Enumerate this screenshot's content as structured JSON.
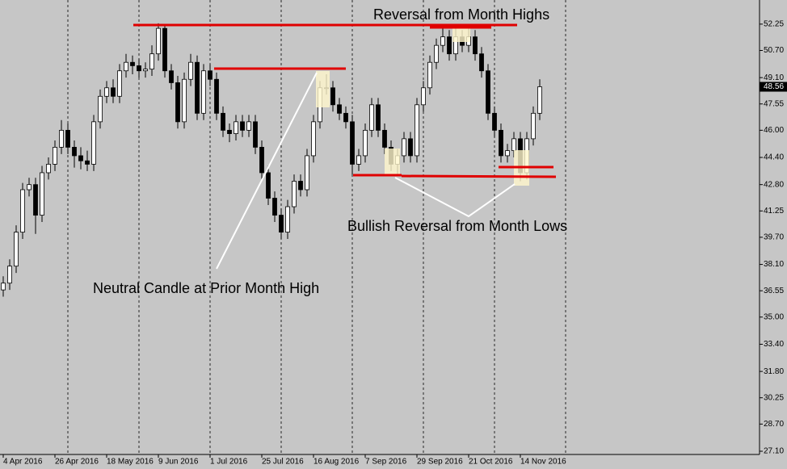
{
  "chart_data": {
    "type": "candlestick",
    "annotations": [
      "Reversal from Month Highs",
      "Neutral Candle at Prior Month High",
      "Bullish Reversal from Month Lows"
    ],
    "current_price": 48.56,
    "categories": [
      "4 Apr 2016",
      null,
      null,
      null,
      null,
      null,
      null,
      null,
      "26 Apr 2016",
      null,
      null,
      null,
      null,
      null,
      null,
      null,
      "18 May 2016",
      null,
      null,
      null,
      null,
      null,
      null,
      null,
      "9 Jun 2016",
      null,
      null,
      null,
      null,
      null,
      null,
      null,
      "1 Jul 2016",
      null,
      null,
      null,
      null,
      null,
      null,
      null,
      "25 Jul 2016",
      null,
      null,
      null,
      null,
      null,
      null,
      null,
      "16 Aug 2016",
      null,
      null,
      null,
      null,
      null,
      null,
      null,
      "7 Sep 2016",
      null,
      null,
      null,
      null,
      null,
      null,
      null,
      "29 Sep 2016",
      null,
      null,
      null,
      null,
      null,
      null,
      null,
      "21 Oct 2016",
      null,
      null,
      null,
      null,
      null,
      null,
      null,
      "14 Nov 2016",
      null,
      null,
      null
    ],
    "open": [
      36.6,
      37.0,
      38.0,
      40.0,
      42.5,
      42.8,
      41.0,
      43.5,
      44.0,
      45.0,
      46.0,
      45.0,
      44.5,
      44.2,
      44.0,
      46.5,
      48.0,
      48.5,
      48.0,
      49.5,
      50.0,
      49.8,
      49.5,
      49.6,
      50.5,
      52.0,
      49.5,
      48.8,
      46.5,
      49.0,
      50.0,
      47.0,
      49.5,
      49.0,
      47.0,
      46.0,
      45.8,
      46.5,
      46.0,
      46.5,
      45.0,
      43.5,
      42.0,
      41.0,
      40.0,
      41.5,
      43.0,
      42.5,
      44.5,
      46.5,
      48.5,
      48.5,
      47.5,
      47.0,
      46.5,
      44.0,
      44.5,
      46.0,
      47.5,
      46.0,
      45.0,
      44.0,
      44.5,
      45.5,
      44.5,
      47.5,
      48.5,
      50.0,
      51.0,
      51.5,
      50.5,
      51.5,
      51.0,
      51.5,
      50.5,
      49.5,
      47.0,
      46.0,
      44.5,
      44.8,
      45.5,
      43.5,
      45.5,
      47.0
    ],
    "high": [
      37.4,
      38.4,
      40.4,
      42.9,
      43.2,
      43.2,
      43.9,
      44.4,
      45.4,
      46.6,
      46.4,
      45.4,
      45.0,
      44.8,
      46.9,
      48.4,
      48.9,
      49.0,
      49.9,
      50.5,
      50.4,
      50.2,
      50.0,
      51.0,
      52.3,
      52.2,
      49.9,
      49.2,
      49.4,
      50.5,
      50.4,
      49.9,
      49.9,
      49.4,
      47.4,
      46.4,
      46.9,
      46.9,
      46.9,
      46.9,
      45.4,
      43.9,
      42.4,
      41.4,
      41.9,
      43.4,
      43.4,
      44.9,
      46.9,
      48.9,
      49.3,
      48.9,
      47.9,
      47.4,
      46.9,
      44.9,
      46.4,
      47.9,
      47.9,
      46.4,
      45.4,
      44.9,
      45.9,
      45.9,
      47.9,
      48.9,
      50.4,
      51.4,
      52.2,
      51.9,
      52.2,
      51.9,
      52.0,
      51.9,
      50.9,
      49.9,
      47.4,
      46.4,
      45.2,
      45.9,
      45.9,
      45.9,
      47.4,
      49.0
    ],
    "low": [
      36.2,
      36.6,
      37.6,
      39.6,
      42.1,
      39.9,
      40.6,
      43.1,
      43.6,
      44.6,
      44.6,
      43.8,
      43.7,
      43.6,
      43.6,
      46.1,
      47.6,
      47.6,
      47.6,
      49.1,
      49.3,
      49.1,
      49.1,
      49.2,
      50.1,
      49.1,
      48.4,
      46.1,
      46.1,
      48.6,
      46.6,
      46.6,
      48.6,
      46.6,
      45.6,
      45.3,
      45.4,
      45.6,
      45.6,
      44.6,
      43.1,
      41.6,
      40.6,
      39.6,
      39.6,
      41.1,
      42.1,
      42.1,
      44.1,
      46.1,
      48.1,
      47.1,
      46.6,
      46.1,
      43.4,
      43.6,
      44.1,
      45.6,
      45.6,
      44.6,
      43.6,
      43.3,
      44.1,
      44.1,
      44.1,
      47.1,
      48.1,
      49.6,
      50.6,
      50.1,
      50.1,
      50.6,
      50.6,
      50.1,
      49.1,
      46.6,
      45.6,
      44.1,
      44.1,
      44.4,
      43.0,
      43.1,
      45.1,
      46.6
    ],
    "close": [
      37.0,
      38.0,
      40.0,
      42.5,
      42.8,
      41.0,
      43.5,
      44.0,
      45.0,
      46.0,
      45.0,
      44.5,
      44.2,
      44.0,
      46.5,
      48.0,
      48.5,
      48.0,
      49.5,
      50.0,
      49.8,
      49.5,
      49.6,
      50.5,
      52.0,
      49.5,
      48.8,
      46.5,
      49.0,
      50.0,
      47.0,
      49.5,
      49.0,
      47.0,
      46.0,
      45.8,
      46.5,
      46.0,
      46.5,
      45.0,
      43.5,
      42.0,
      41.0,
      40.0,
      41.5,
      43.0,
      42.5,
      44.5,
      46.5,
      48.5,
      48.5,
      47.5,
      47.0,
      46.5,
      44.0,
      44.5,
      46.0,
      47.5,
      46.0,
      45.0,
      44.0,
      44.5,
      45.5,
      44.5,
      47.5,
      48.5,
      50.0,
      51.0,
      51.5,
      50.5,
      51.5,
      51.0,
      51.5,
      50.5,
      49.5,
      47.0,
      46.0,
      44.5,
      44.8,
      45.5,
      43.5,
      45.5,
      47.0,
      48.56
    ],
    "ylim": [
      26.91,
      53.67
    ],
    "yticks": [
      {
        "value": 52.25,
        "label": "52.25"
      },
      {
        "value": 50.7,
        "label": "50.70"
      },
      {
        "value": 49.1,
        "label": "49.10"
      },
      {
        "value": 47.55,
        "label": "47.55"
      },
      {
        "value": 46.0,
        "label": "46.00"
      },
      {
        "value": 44.4,
        "label": "44.40"
      },
      {
        "value": 42.8,
        "label": "42.80"
      },
      {
        "value": 41.25,
        "label": "41.25"
      },
      {
        "value": 39.7,
        "label": "39.70"
      },
      {
        "value": 38.1,
        "label": "38.10"
      },
      {
        "value": 36.55,
        "label": "36.55"
      },
      {
        "value": 35.0,
        "label": "35.00"
      },
      {
        "value": 33.4,
        "label": "33.40"
      },
      {
        "value": 31.8,
        "label": "31.80"
      },
      {
        "value": 30.25,
        "label": "30.25"
      },
      {
        "value": 28.7,
        "label": "28.70"
      },
      {
        "value": 27.1,
        "label": "27.10"
      }
    ],
    "bull_color": "#ffffff",
    "bear_color": "#000000",
    "wick_color": "#000000",
    "annotation_color": "#8b0000"
  }
}
